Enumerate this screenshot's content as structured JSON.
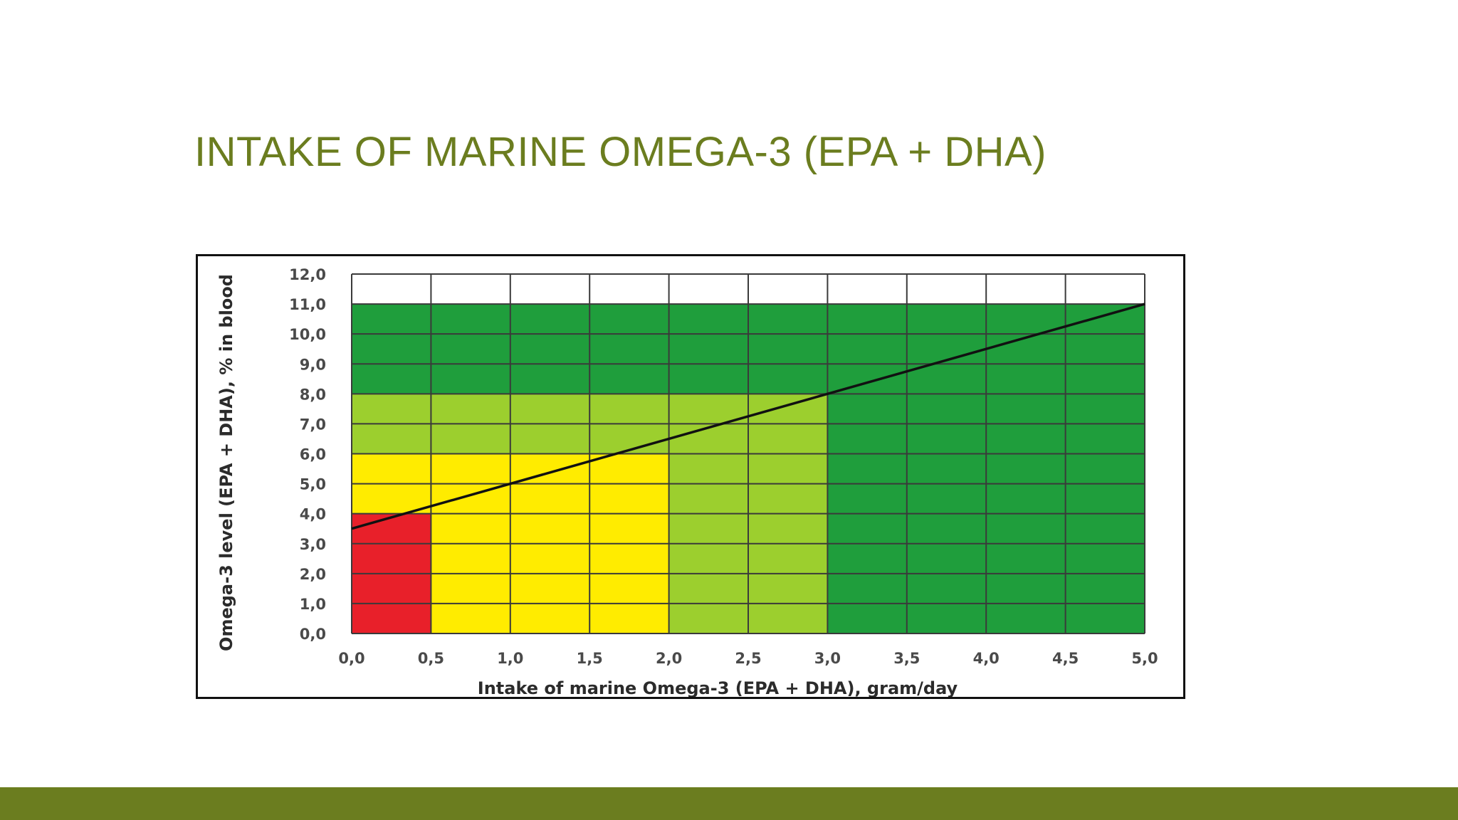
{
  "slide": {
    "title": "INTAKE OF MARINE OMEGA-3 (EPA + DHA)"
  },
  "colors": {
    "title": "#6b7d1f",
    "footer": "#6b7d1f",
    "red": "#e8202a",
    "yellow": "#ffec00",
    "light_green": "#9ccf2e",
    "dark_green": "#1f9e3c"
  },
  "chart_data": {
    "type": "line",
    "title": "",
    "xlabel": "Intake of marine Omega-3 (EPA + DHA), gram/day",
    "ylabel": "Omega-3 level (EPA + DHA), % in blood",
    "xlim": [
      0,
      5
    ],
    "ylim": [
      0,
      12
    ],
    "x_ticks": [
      "0,0",
      "0,5",
      "1,0",
      "1,5",
      "2,0",
      "2,5",
      "3,0",
      "3,5",
      "4,0",
      "4,5",
      "5,0"
    ],
    "y_ticks": [
      "0,0",
      "1,0",
      "2,0",
      "3,0",
      "4,0",
      "5,0",
      "6,0",
      "7,0",
      "8,0",
      "9,0",
      "10,0",
      "11,0",
      "12,0"
    ],
    "grid": true,
    "series": [
      {
        "x": [
          0.0,
          5.0
        ],
        "y": [
          3.5,
          11.0
        ]
      }
    ],
    "zones": [
      {
        "x0": 0.0,
        "x1": 0.5,
        "y0": 0,
        "y1": 4,
        "color": "red"
      },
      {
        "x0": 0.0,
        "x1": 0.5,
        "y0": 4,
        "y1": 6,
        "color": "yellow"
      },
      {
        "x0": 0.5,
        "x1": 2.0,
        "y0": 0,
        "y1": 6,
        "color": "yellow"
      },
      {
        "x0": 0.0,
        "x1": 2.0,
        "y0": 6,
        "y1": 8,
        "color": "light_green"
      },
      {
        "x0": 2.0,
        "x1": 3.0,
        "y0": 0,
        "y1": 8,
        "color": "light_green"
      },
      {
        "x0": 0.0,
        "x1": 3.0,
        "y0": 8,
        "y1": 11,
        "color": "dark_green"
      },
      {
        "x0": 3.0,
        "x1": 5.0,
        "y0": 0,
        "y1": 11,
        "color": "dark_green"
      }
    ]
  }
}
